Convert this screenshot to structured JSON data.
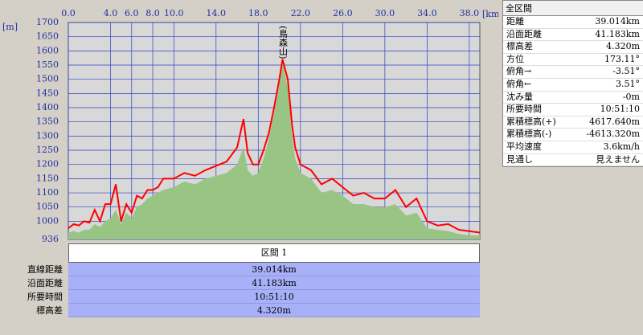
{
  "chart_data": {
    "type": "line",
    "y_label": "[m]",
    "x_label": "[km]",
    "annotation": "(鳥森山)",
    "x": [
      0,
      0.5,
      1,
      1.5,
      2,
      2.5,
      3,
      3.5,
      4,
      4.5,
      5,
      5.5,
      6,
      6.5,
      7,
      7.5,
      8,
      8.5,
      9,
      10,
      11,
      12,
      13,
      14,
      15,
      16,
      16.6,
      17,
      17.5,
      18,
      18.5,
      19,
      19.5,
      20,
      20.3,
      20.8,
      21.2,
      21.5,
      22,
      23,
      24,
      25,
      26,
      27,
      28,
      29,
      30,
      31,
      32,
      33,
      34,
      35,
      36,
      37,
      38,
      39
    ],
    "series": [
      {
        "type": "area",
        "color": "#98c484",
        "values": [
          960,
          965,
          960,
          970,
          970,
          990,
          980,
          1000,
          1010,
          1040,
          990,
          1030,
          1010,
          1050,
          1060,
          1080,
          1090,
          1100,
          1110,
          1120,
          1140,
          1130,
          1150,
          1160,
          1170,
          1200,
          1260,
          1180,
          1160,
          1170,
          1220,
          1290,
          1380,
          1480,
          1565,
          1470,
          1300,
          1220,
          1170,
          1150,
          1100,
          1110,
          1090,
          1060,
          1060,
          1050,
          1050,
          1060,
          1020,
          1030,
          975,
          970,
          965,
          955,
          950,
          950
        ]
      },
      {
        "type": "line",
        "color": "#ff0000",
        "values": [
          975,
          990,
          985,
          1000,
          995,
          1040,
          1000,
          1060,
          1060,
          1130,
          1000,
          1060,
          1030,
          1090,
          1080,
          1110,
          1110,
          1120,
          1150,
          1150,
          1170,
          1160,
          1180,
          1195,
          1210,
          1260,
          1360,
          1240,
          1200,
          1200,
          1250,
          1310,
          1400,
          1500,
          1570,
          1500,
          1340,
          1260,
          1200,
          1180,
          1130,
          1150,
          1120,
          1090,
          1100,
          1080,
          1080,
          1110,
          1050,
          1080,
          1000,
          985,
          990,
          970,
          965,
          960
        ]
      }
    ],
    "xlim": [
      0,
      39
    ],
    "ylim": [
      936,
      1700
    ],
    "xticks": [
      {
        "value": 0,
        "label": "0.0"
      },
      {
        "value": 4,
        "label": "4.0"
      },
      {
        "value": 6,
        "label": "6.0"
      },
      {
        "value": 8,
        "label": "8.0"
      },
      {
        "value": 10,
        "label": "10.0"
      },
      {
        "value": 14,
        "label": "14.0"
      },
      {
        "value": 18,
        "label": "18.0"
      },
      {
        "value": 22,
        "label": "22.0"
      },
      {
        "value": 26,
        "label": "26.0"
      },
      {
        "value": 30,
        "label": "30.0"
      },
      {
        "value": 34,
        "label": "34.0"
      },
      {
        "value": 38,
        "label": "38.0"
      }
    ],
    "yticks": [
      936,
      1000,
      1050,
      1100,
      1150,
      1200,
      1250,
      1300,
      1350,
      1400,
      1450,
      1500,
      1550,
      1600,
      1650,
      1700
    ],
    "grid": true
  },
  "summary_panel": {
    "title": "全区間",
    "rows": [
      [
        "距離",
        "39.014km"
      ],
      [
        "沿面距離",
        "41.183km"
      ],
      [
        "標高差",
        "4.320m"
      ],
      [
        "方位",
        "173.11°"
      ],
      [
        "俯角→",
        "-3.51°"
      ],
      [
        "俯角←",
        "3.51°"
      ],
      [
        "沈み量",
        "-0m"
      ],
      [
        "所要時間",
        "10:51:10"
      ],
      [
        "累積標高(+)",
        "4617.640m"
      ],
      [
        "累積標高(-)",
        "-4613.320m"
      ],
      [
        "平均速度",
        "3.6km/h"
      ],
      [
        "見通し",
        "見えません"
      ]
    ]
  },
  "section_table": {
    "header": "区間 1",
    "rows": [
      [
        "直線距離",
        "39.014km"
      ],
      [
        "沿面距離",
        "41.183km"
      ],
      [
        "所要時間",
        "10:51:10"
      ],
      [
        "標高差",
        "4.320m"
      ]
    ]
  }
}
